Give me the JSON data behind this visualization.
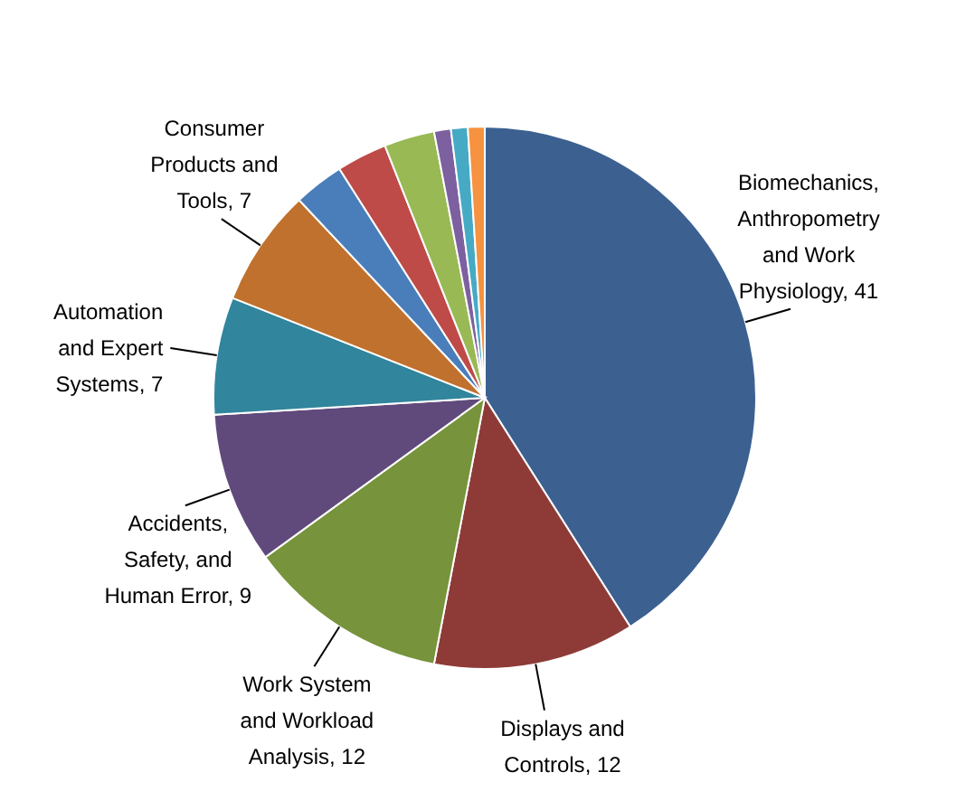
{
  "chart_data": {
    "type": "pie",
    "categories": [
      "Biomechanics, Anthropometry and Work Physiology",
      "Displays and Controls",
      "Work System and Workload Analysis",
      "Accidents, Safety, and Human Error",
      "Automation and Expert Systems",
      "Consumer Products and Tools",
      null,
      null,
      null,
      null,
      null,
      null
    ],
    "values": [
      41,
      12,
      12,
      9,
      7,
      7,
      3,
      3,
      3,
      1,
      1,
      1
    ],
    "colors": [
      "#3c6191",
      "#8e3b38",
      "#77933c",
      "#604a7b",
      "#31859c",
      "#c0712e",
      "#4a7ebb",
      "#be4b48",
      "#98b954",
      "#7d60a0",
      "#46aac5",
      "#f69240"
    ],
    "value_labels": [
      ", 41",
      ", 12",
      ", 12",
      ", 9",
      ", 7",
      ", 7",
      null,
      null,
      null,
      null,
      null,
      null
    ]
  }
}
